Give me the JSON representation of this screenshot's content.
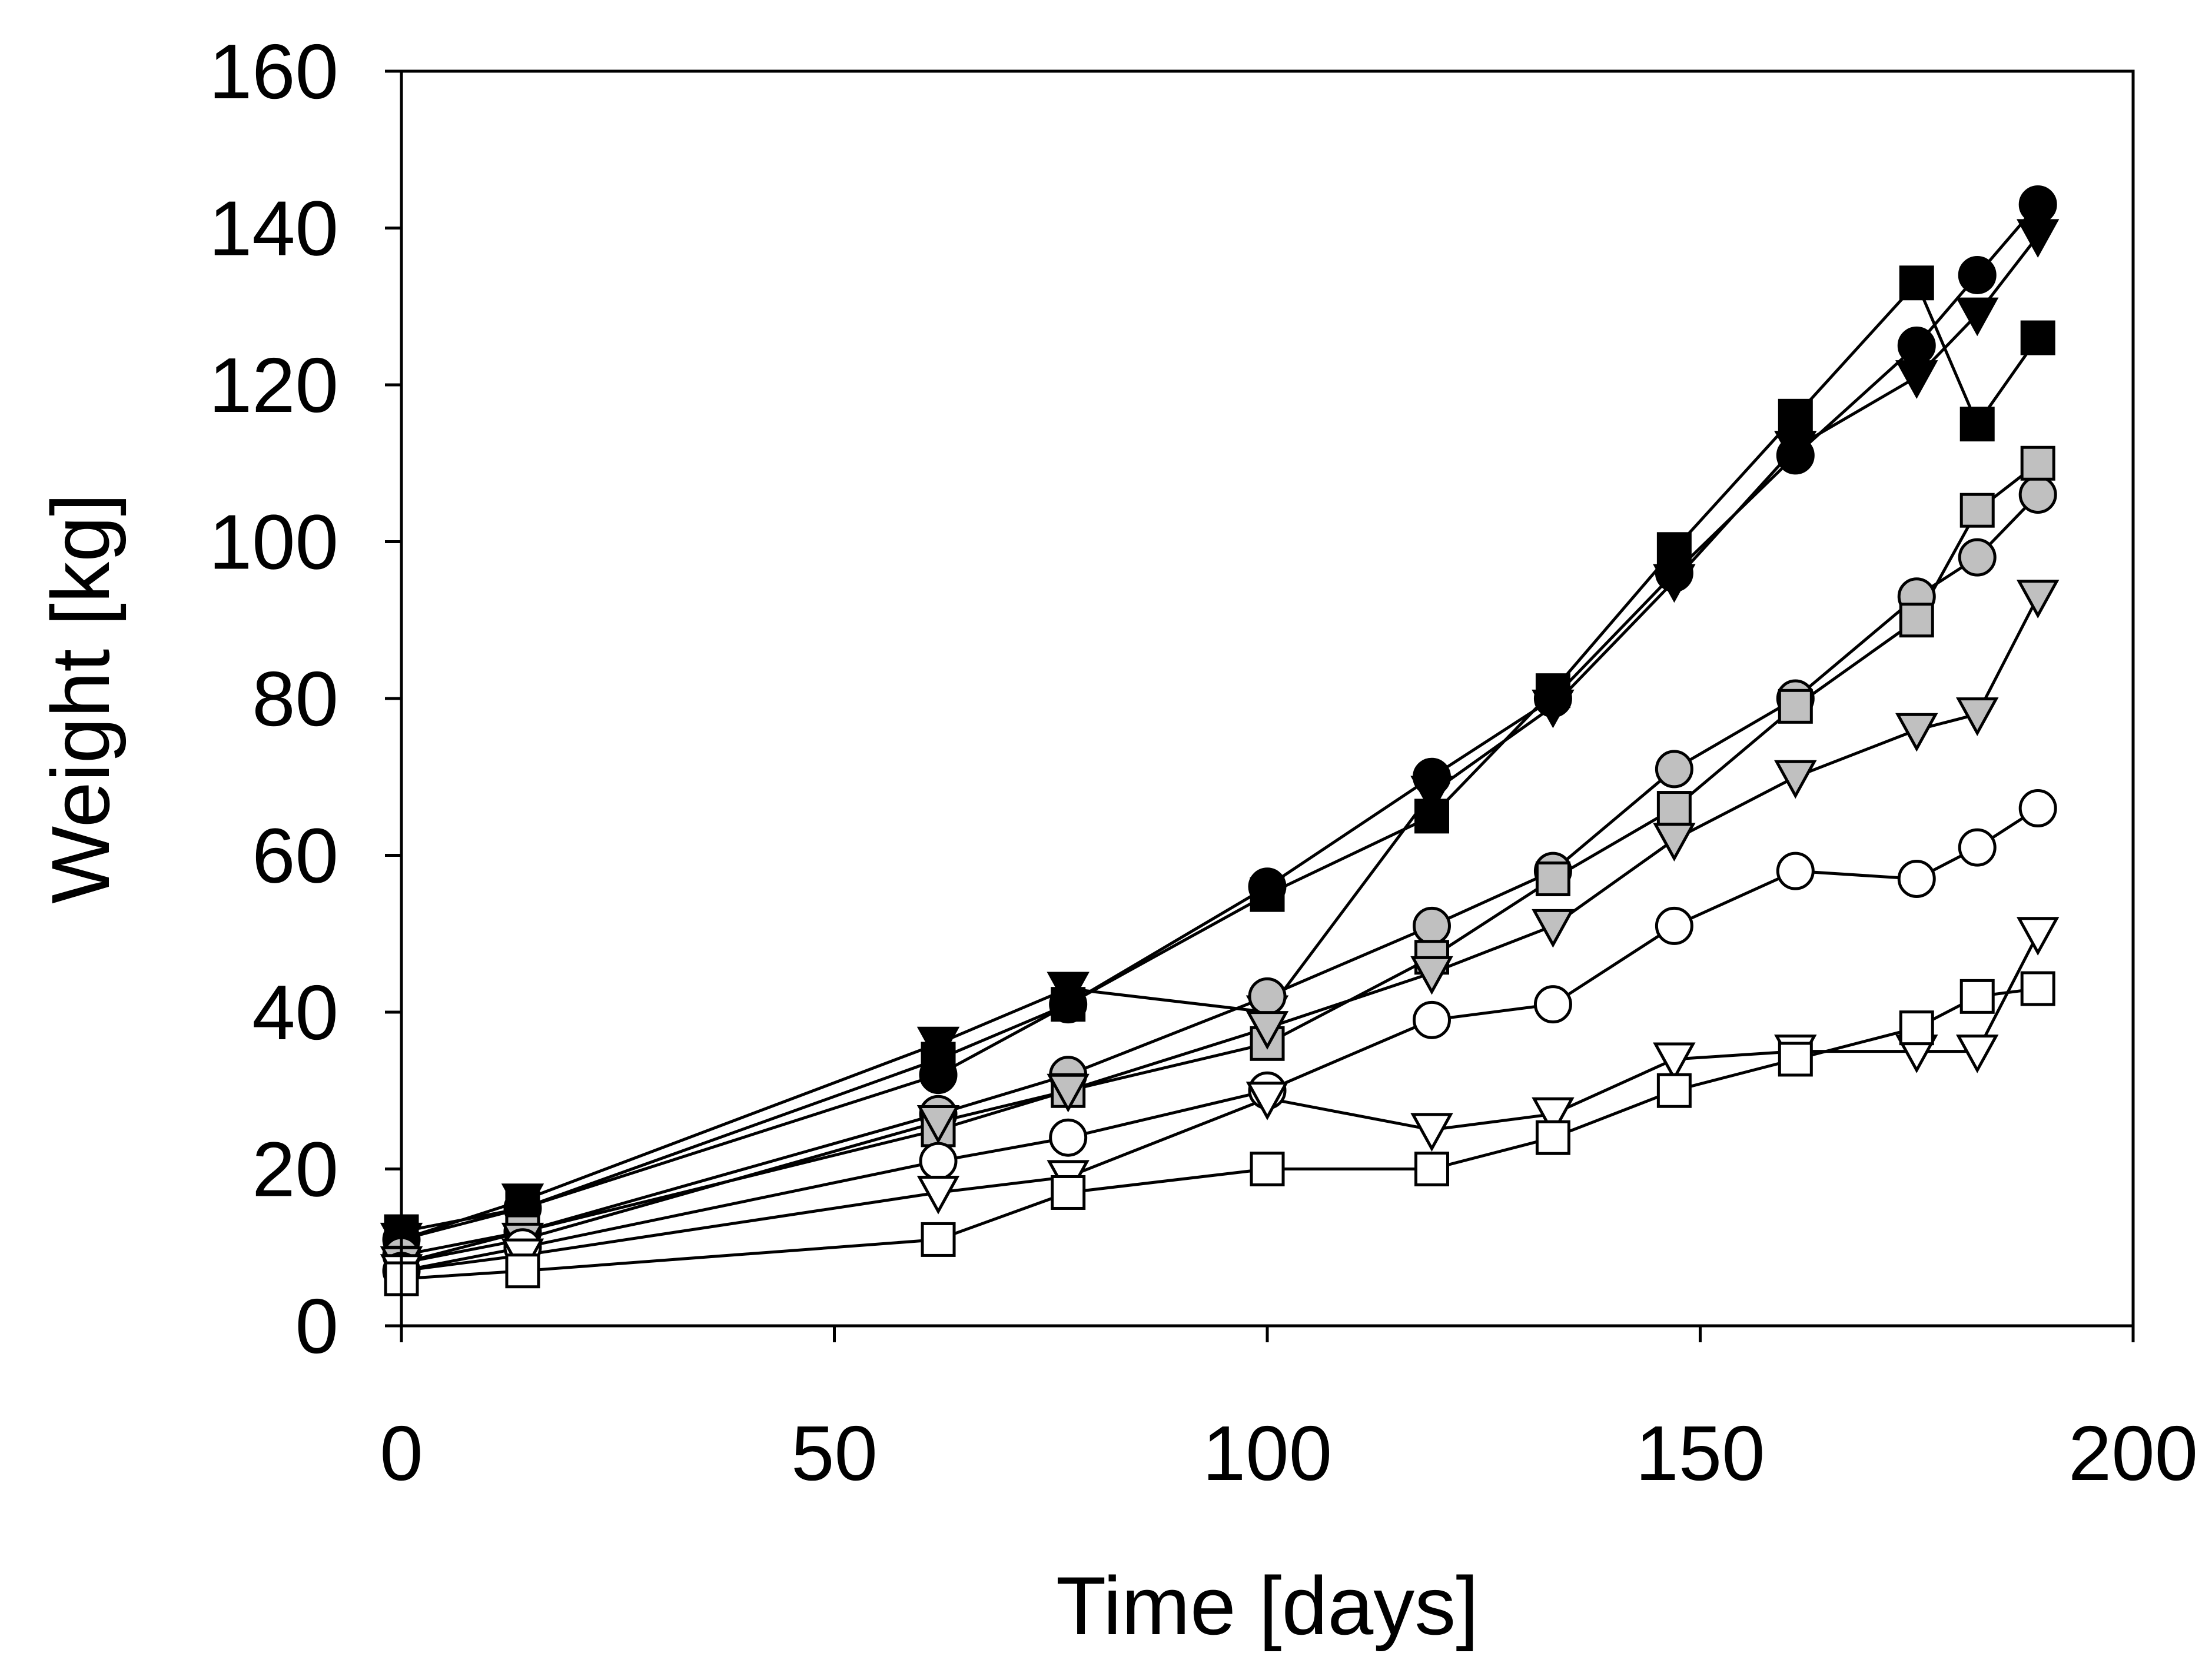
{
  "chart_data": {
    "type": "scatter",
    "title": "",
    "xlabel": "Time [days]",
    "ylabel": "Weight [kg]",
    "xlim": [
      0,
      200
    ],
    "ylim": [
      0,
      160
    ],
    "xticks": [
      0,
      50,
      100,
      150,
      200
    ],
    "yticks": [
      0,
      20,
      40,
      60,
      80,
      100,
      120,
      140,
      160
    ],
    "grid": false,
    "legend": "none",
    "series": [
      {
        "name": "black circle",
        "marker": "circle",
        "fill": "#000000",
        "x": [
          0,
          14,
          62,
          77,
          100,
          119,
          133,
          147,
          161,
          175,
          182,
          189
        ],
        "y": [
          11,
          15,
          32,
          41,
          56,
          70,
          80,
          96,
          111,
          125,
          134,
          143
        ]
      },
      {
        "name": "black square",
        "marker": "square",
        "fill": "#000000",
        "x": [
          0,
          14,
          62,
          77,
          100,
          119,
          133,
          147,
          161,
          175,
          182,
          189
        ],
        "y": [
          12,
          15,
          34,
          41,
          55,
          65,
          81,
          99,
          116,
          133,
          115,
          126
        ]
      },
      {
        "name": "black triangle",
        "marker": "triangle-down",
        "fill": "#000000",
        "x": [
          0,
          14,
          62,
          77,
          100,
          119,
          133,
          147,
          161,
          175,
          182,
          189
        ],
        "y": [
          11,
          16,
          36,
          43,
          40,
          68,
          79,
          95,
          112,
          121,
          129,
          139
        ]
      },
      {
        "name": "grey circle",
        "marker": "circle",
        "fill": "#c0c0c0",
        "x": [
          0,
          14,
          62,
          77,
          100,
          119,
          133,
          147,
          161,
          175,
          182,
          189
        ],
        "y": [
          9,
          12,
          27,
          32,
          42,
          51,
          58,
          71,
          80,
          93,
          98,
          106
        ]
      },
      {
        "name": "grey square",
        "marker": "square",
        "fill": "#c0c0c0",
        "x": [
          0,
          14,
          62,
          77,
          100,
          119,
          133,
          147,
          161,
          175,
          182,
          189
        ],
        "y": [
          8,
          12,
          25,
          30,
          36,
          47,
          57,
          66,
          79,
          90,
          104,
          110
        ]
      },
      {
        "name": "grey triangle",
        "marker": "triangle-down",
        "fill": "#c0c0c0",
        "x": [
          0,
          14,
          62,
          77,
          100,
          119,
          133,
          147,
          161,
          175,
          182,
          189
        ],
        "y": [
          8,
          11,
          26,
          30,
          38,
          45,
          51,
          62,
          70,
          76,
          78,
          93
        ]
      },
      {
        "name": "white circle",
        "marker": "circle",
        "fill": "#ffffff",
        "x": [
          0,
          14,
          62,
          77,
          100,
          119,
          133,
          147,
          161,
          175,
          182,
          189
        ],
        "y": [
          7,
          10,
          21,
          24,
          30,
          39,
          41,
          51,
          58,
          57,
          61,
          66
        ]
      },
      {
        "name": "white triangle",
        "marker": "triangle-down",
        "fill": "#ffffff",
        "x": [
          0,
          14,
          62,
          77,
          100,
          119,
          133,
          147,
          161,
          175,
          182,
          189
        ],
        "y": [
          7,
          9,
          17,
          19,
          29,
          25,
          27,
          34,
          35,
          35,
          35,
          50
        ]
      },
      {
        "name": "white square",
        "marker": "square",
        "fill": "#ffffff",
        "x": [
          0,
          14,
          62,
          77,
          100,
          119,
          133,
          147,
          161,
          175,
          182,
          189
        ],
        "y": [
          6,
          7,
          11,
          17,
          20,
          20,
          24,
          30,
          34,
          38,
          42,
          43
        ]
      }
    ]
  }
}
